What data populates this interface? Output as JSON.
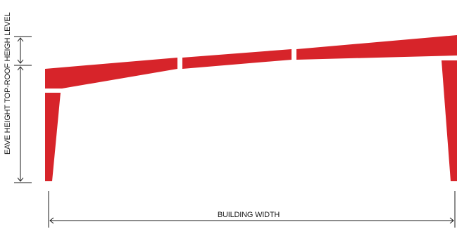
{
  "labels": {
    "roof_dimension": "TOP-ROOF HEIGH LEVEL",
    "eave_dimension": "EAVE HEIGHT",
    "width_dimension": "BUILDING WIDTH"
  },
  "colors": {
    "frame": "#d7242a",
    "dimension_lines": "#1a1a1a",
    "background": "#ffffff"
  }
}
